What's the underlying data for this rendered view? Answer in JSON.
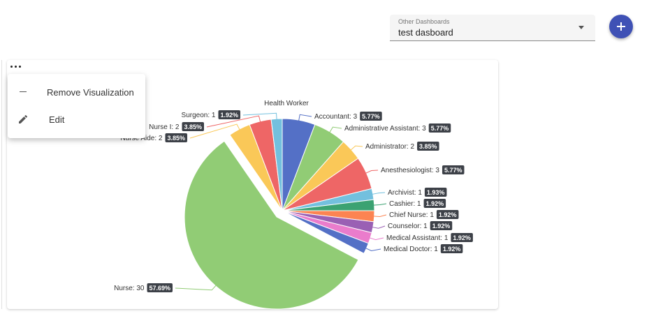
{
  "header": {
    "dashboard_select": {
      "label": "Other Dashboards",
      "value": "test dasboard"
    },
    "add_button_icon": "plus-icon"
  },
  "card": {
    "menu_icon": "more-horiz-icon",
    "menu": {
      "items": [
        {
          "label": "Remove Visualization",
          "icon": "dash-icon"
        },
        {
          "label": "Edit",
          "icon": "pencil-icon"
        }
      ]
    }
  },
  "chart_data": {
    "type": "pie",
    "title": "Health Worker",
    "slices": [
      {
        "name": "Accountant",
        "value": 3,
        "percent": "5.77%",
        "color": "#5470c6"
      },
      {
        "name": "Administrative Assistant",
        "value": 3,
        "percent": "5.77%",
        "color": "#91cc75"
      },
      {
        "name": "Administrator",
        "value": 2,
        "percent": "3.85%",
        "color": "#fac858"
      },
      {
        "name": "Anesthesiologist",
        "value": 3,
        "percent": "5.77%",
        "color": "#ee6666"
      },
      {
        "name": "Archivist",
        "value": 1,
        "percent": "1.93%",
        "color": "#73c0de"
      },
      {
        "name": "Cashier",
        "value": 1,
        "percent": "1.92%",
        "color": "#3ba272"
      },
      {
        "name": "Chief Nurse",
        "value": 1,
        "percent": "1.92%",
        "color": "#fc8452"
      },
      {
        "name": "Counselor",
        "value": 1,
        "percent": "1.92%",
        "color": "#9a60b4"
      },
      {
        "name": "Medical Assistant",
        "value": 1,
        "percent": "1.92%",
        "color": "#ea7ccc"
      },
      {
        "name": "Medical Doctor",
        "value": 1,
        "percent": "1.92%",
        "color": "#5470c6"
      },
      {
        "name": "Nurse",
        "value": 30,
        "percent": "57.69%",
        "color": "#91cc75"
      },
      {
        "name": "Nurse Aide",
        "value": 2,
        "percent": "3.85%",
        "color": "#fac858"
      },
      {
        "name": "Nurse I",
        "value": 2,
        "percent": "3.85%",
        "color": "#ee6666"
      },
      {
        "name": "Surgeon",
        "value": 1,
        "percent": "1.92%",
        "color": "#73c0de"
      }
    ]
  }
}
